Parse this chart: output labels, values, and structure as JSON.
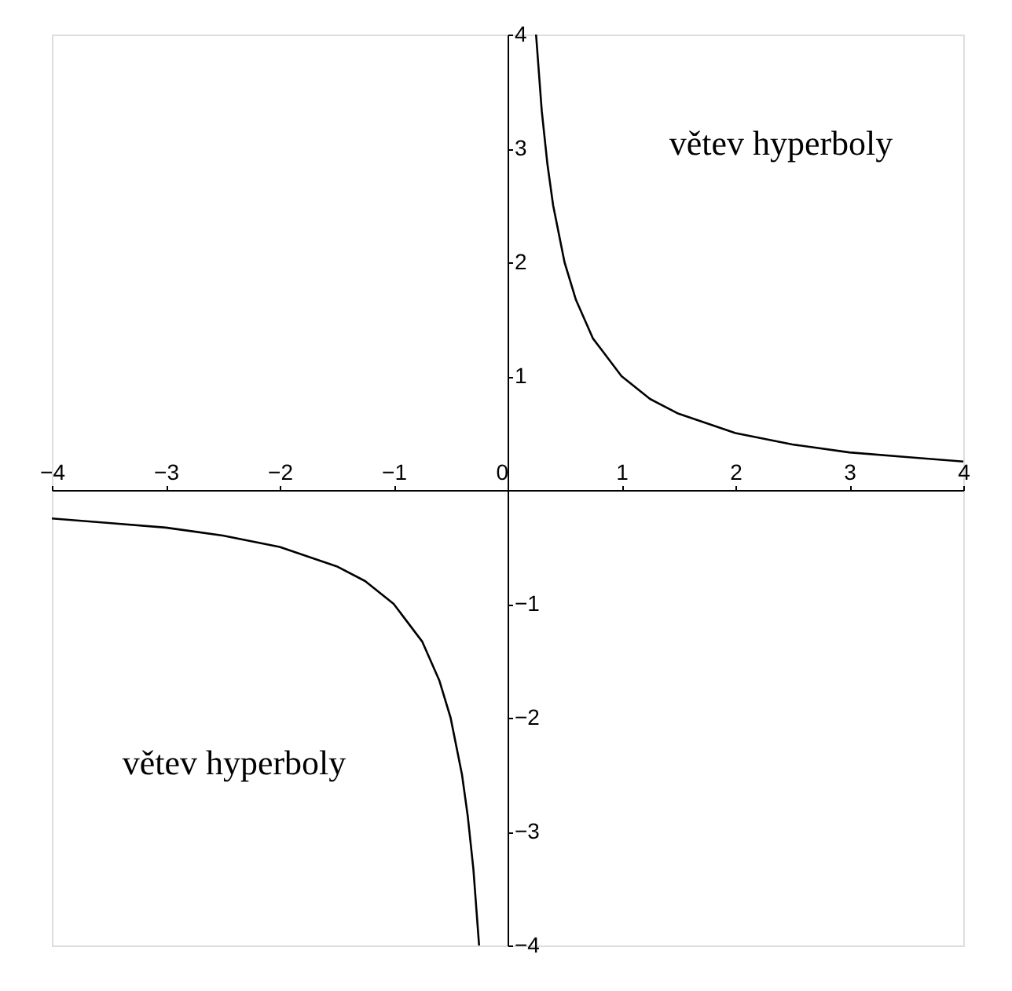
{
  "chart_data": {
    "type": "line",
    "xlim": [
      -4,
      4
    ],
    "ylim": [
      -4,
      4
    ],
    "xticks": [
      -4,
      -3,
      -2,
      -1,
      0,
      1,
      2,
      3,
      4
    ],
    "yticks": [
      -4,
      -3,
      -2,
      -1,
      1,
      2,
      3,
      4
    ],
    "grid": false,
    "marker": "none",
    "line_style": "solid",
    "series": [
      {
        "color": "#000000",
        "x": [
          -4,
          -3.5,
          -3,
          -2.5,
          -2,
          -1.5,
          -1.25,
          -1,
          -0.75,
          -0.6,
          -0.5,
          -0.4,
          -0.35,
          -0.3,
          -0.25
        ],
        "values": [
          -0.25,
          -0.29,
          -0.33,
          -0.4,
          -0.5,
          -0.67,
          -0.8,
          -1,
          -1.33,
          -1.67,
          -2,
          -2.5,
          -2.86,
          -3.33,
          -4
        ]
      },
      {
        "color": "#000000",
        "x": [
          0.25,
          0.3,
          0.35,
          0.4,
          0.5,
          0.6,
          0.75,
          1,
          1.25,
          1.5,
          2,
          2.5,
          3,
          3.5,
          4
        ],
        "values": [
          4,
          3.33,
          2.86,
          2.5,
          2,
          1.67,
          1.33,
          1,
          0.8,
          0.67,
          0.5,
          0.4,
          0.33,
          0.29,
          0.25
        ]
      }
    ],
    "annotations": [
      "větev hyperboly",
      "větev hyperboly"
    ]
  }
}
